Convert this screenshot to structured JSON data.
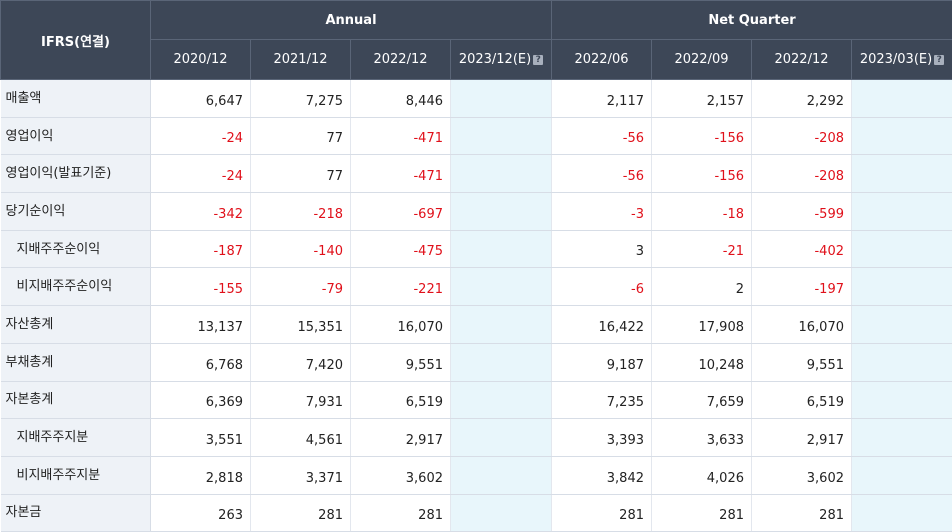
{
  "header": {
    "label": "IFRS(연결)",
    "annual_group": "Annual",
    "quarter_group": "Net Quarter",
    "annual_periods": [
      "2020/12",
      "2021/12",
      "2022/12",
      "2023/12(E)"
    ],
    "quarter_periods": [
      "2022/06",
      "2022/09",
      "2022/12",
      "2023/03(E)"
    ]
  },
  "rows": [
    {
      "label": "매출액",
      "annual": [
        "6,647",
        "7,275",
        "8,446",
        ""
      ],
      "quarter": [
        "2,117",
        "2,157",
        "2,292",
        ""
      ]
    },
    {
      "label": "영업이익",
      "annual": [
        "-24",
        "77",
        "-471",
        ""
      ],
      "quarter": [
        "-56",
        "-156",
        "-208",
        ""
      ]
    },
    {
      "label": "영업이익(발표기준)",
      "annual": [
        "-24",
        "77",
        "-471",
        ""
      ],
      "quarter": [
        "-56",
        "-156",
        "-208",
        ""
      ]
    },
    {
      "label": "당기순이익",
      "annual": [
        "-342",
        "-218",
        "-697",
        ""
      ],
      "quarter": [
        "-3",
        "-18",
        "-599",
        ""
      ]
    },
    {
      "label": "지배주주순이익",
      "annual": [
        "-187",
        "-140",
        "-475",
        ""
      ],
      "quarter": [
        "3",
        "-21",
        "-402",
        ""
      ]
    },
    {
      "label": "비지배주주순이익",
      "annual": [
        "-155",
        "-79",
        "-221",
        ""
      ],
      "quarter": [
        "-6",
        "2",
        "-197",
        ""
      ]
    },
    {
      "label": "자산총계",
      "annual": [
        "13,137",
        "15,351",
        "16,070",
        ""
      ],
      "quarter": [
        "16,422",
        "17,908",
        "16,070",
        ""
      ]
    },
    {
      "label": "부채총계",
      "annual": [
        "6,768",
        "7,420",
        "9,551",
        ""
      ],
      "quarter": [
        "9,187",
        "10,248",
        "9,551",
        ""
      ]
    },
    {
      "label": "자본총계",
      "annual": [
        "6,369",
        "7,931",
        "6,519",
        ""
      ],
      "quarter": [
        "7,235",
        "7,659",
        "6,519",
        ""
      ]
    },
    {
      "label": "지배주주지분",
      "annual": [
        "3,551",
        "4,561",
        "2,917",
        ""
      ],
      "quarter": [
        "3,393",
        "3,633",
        "2,917",
        ""
      ]
    },
    {
      "label": "비지배주주지분",
      "annual": [
        "2,818",
        "3,371",
        "3,602",
        ""
      ],
      "quarter": [
        "3,842",
        "4,026",
        "3,602",
        ""
      ]
    },
    {
      "label": "자본금",
      "annual": [
        "263",
        "281",
        "281",
        ""
      ],
      "quarter": [
        "281",
        "281",
        "281",
        ""
      ]
    }
  ],
  "colors": {
    "header_bg": "#3d4757",
    "negative": "#e0101a",
    "label_bg": "#eef2f7",
    "estimate_bg": "#e8f6fb"
  },
  "icons": {
    "estimate_help": "question-icon"
  }
}
